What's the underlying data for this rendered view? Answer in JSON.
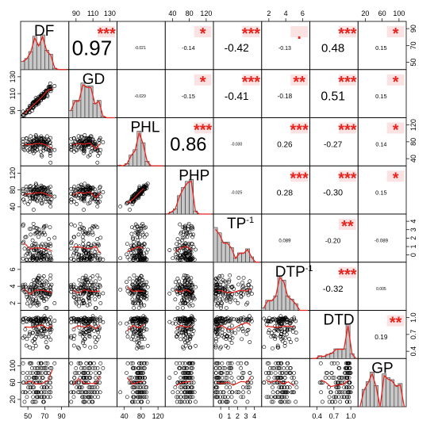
{
  "chart_data": {
    "type": "scatter",
    "title": "",
    "variables": [
      "DF",
      "GD",
      "PHL",
      "PHP",
      "TP",
      "DTP",
      "DTD",
      "GP"
    ],
    "variable_labels": [
      "DF",
      "GD",
      "PHL",
      "PHP",
      "TP",
      "DTP",
      "DTD",
      "GP"
    ],
    "label_superscripts": [
      "",
      "",
      "",
      "",
      "-1",
      "-1",
      "",
      ""
    ],
    "correlations": [
      {
        "row": 0,
        "col": 1,
        "value": "0.97",
        "stars": "***"
      },
      {
        "row": 0,
        "col": 2,
        "value": "-0.021",
        "stars": ""
      },
      {
        "row": 0,
        "col": 3,
        "value": "-0.14",
        "stars": "*"
      },
      {
        "row": 0,
        "col": 4,
        "value": "-0.42",
        "stars": "***"
      },
      {
        "row": 0,
        "col": 5,
        "value": "-0.13",
        "stars": "."
      },
      {
        "row": 0,
        "col": 6,
        "value": "0.48",
        "stars": "***"
      },
      {
        "row": 0,
        "col": 7,
        "value": "0.15",
        "stars": "*"
      },
      {
        "row": 1,
        "col": 2,
        "value": "-0.029",
        "stars": ""
      },
      {
        "row": 1,
        "col": 3,
        "value": "-0.15",
        "stars": "*"
      },
      {
        "row": 1,
        "col": 4,
        "value": "-0.41",
        "stars": "***"
      },
      {
        "row": 1,
        "col": 5,
        "value": "-0.18",
        "stars": "**"
      },
      {
        "row": 1,
        "col": 6,
        "value": "0.51",
        "stars": "***"
      },
      {
        "row": 1,
        "col": 7,
        "value": "0.15",
        "stars": "*"
      },
      {
        "row": 2,
        "col": 3,
        "value": "0.86",
        "stars": "***"
      },
      {
        "row": 2,
        "col": 4,
        "value": "-0.030",
        "stars": ""
      },
      {
        "row": 2,
        "col": 5,
        "value": "0.26",
        "stars": "***"
      },
      {
        "row": 2,
        "col": 6,
        "value": "-0.27",
        "stars": "***"
      },
      {
        "row": 2,
        "col": 7,
        "value": "0.14",
        "stars": "*"
      },
      {
        "row": 3,
        "col": 4,
        "value": "-0.025",
        "stars": ""
      },
      {
        "row": 3,
        "col": 5,
        "value": "0.28",
        "stars": "***"
      },
      {
        "row": 3,
        "col": 6,
        "value": "-0.30",
        "stars": "***"
      },
      {
        "row": 3,
        "col": 7,
        "value": "0.15",
        "stars": "*"
      },
      {
        "row": 4,
        "col": 5,
        "value": "0.089",
        "stars": ""
      },
      {
        "row": 4,
        "col": 6,
        "value": "-0.20",
        "stars": "**"
      },
      {
        "row": 4,
        "col": 7,
        "value": "-0.089",
        "stars": ""
      },
      {
        "row": 5,
        "col": 6,
        "value": "-0.32",
        "stars": "***"
      },
      {
        "row": 5,
        "col": 7,
        "value": "0.005",
        "stars": ""
      },
      {
        "row": 6,
        "col": 7,
        "value": "0.19",
        "stars": "**"
      }
    ],
    "axis_ticks": {
      "top": [
        {
          "col": 1,
          "labels": [
            "90",
            "110",
            "130"
          ]
        },
        {
          "col": 3,
          "labels": [
            "40",
            "80",
            "120"
          ]
        },
        {
          "col": 5,
          "labels": [
            "2",
            "4",
            "6"
          ]
        },
        {
          "col": 7,
          "labels": [
            "20",
            "60",
            "100"
          ]
        }
      ],
      "bottom": [
        {
          "col": 0,
          "labels": [
            "50",
            "70",
            "90"
          ]
        },
        {
          "col": 2,
          "labels": [
            "40",
            "80",
            "120"
          ]
        },
        {
          "col": 4,
          "labels": [
            "0",
            "1",
            "2",
            "3",
            "4"
          ]
        },
        {
          "col": 6,
          "labels": [
            "0.4",
            "0.7",
            "1.0"
          ]
        }
      ],
      "left": [
        {
          "row": 1,
          "labels": [
            "90",
            "110",
            "130"
          ]
        },
        {
          "row": 3,
          "labels": [
            "40",
            "80",
            "120"
          ]
        },
        {
          "row": 5,
          "labels": [
            "2",
            "4",
            "6"
          ]
        },
        {
          "row": 7,
          "labels": [
            "20",
            "60",
            "100"
          ]
        }
      ],
      "right": [
        {
          "row": 0,
          "labels": [
            "50",
            "70",
            "90"
          ]
        },
        {
          "row": 2,
          "labels": [
            "40",
            "80",
            "120"
          ]
        },
        {
          "row": 4,
          "labels": [
            "0",
            "1",
            "2",
            "3",
            "4"
          ]
        },
        {
          "row": 6,
          "labels": [
            "0.4",
            "0.7",
            "1.0"
          ]
        }
      ]
    },
    "stars_color": "#e8231d",
    "smooth_color": "#e8231d",
    "highlight_color": "#fbe3e3",
    "hist_fill": "#c8c8c8",
    "grid": false
  }
}
